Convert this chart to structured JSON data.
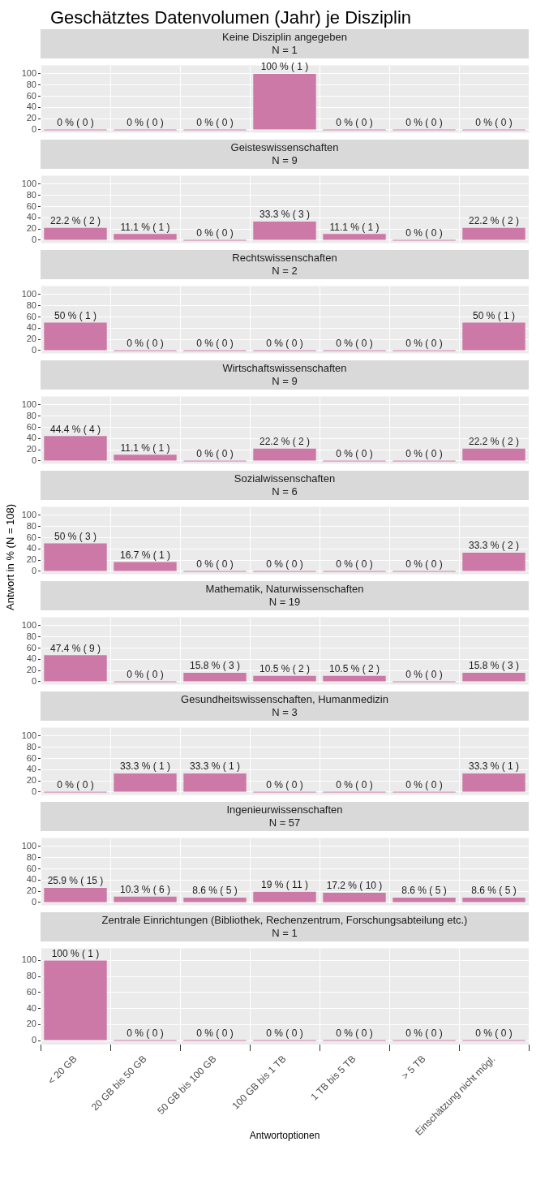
{
  "chart_data": [
    {
      "type": "bar",
      "title": "Keine Disziplin angegeben",
      "subtitle": "N = 1",
      "annotations": [
        "Geschätztes Datenvolumen (Jahr) je Disziplin"
      ],
      "categories": [
        null,
        null,
        null,
        null,
        null,
        null,
        null
      ],
      "values": [
        0,
        0,
        0,
        100,
        0,
        0,
        0
      ],
      "value_labels": [
        "0 % ( 0 )",
        "0 % ( 0 )",
        "0 % ( 0 )",
        "100 % ( 1 )",
        "0 % ( 0 )",
        "0 % ( 0 )",
        "0 % ( 0 )"
      ],
      "color": "#cc79a7",
      "ylim": [
        -5,
        115
      ],
      "yticks": [
        0,
        20,
        40,
        60,
        80,
        100
      ],
      "grid": true,
      "tick_labels": "y"
    },
    {
      "type": "bar",
      "title": "Geisteswissenschaften",
      "subtitle": "N = 9",
      "categories": [
        null,
        null,
        null,
        null,
        null,
        null,
        null
      ],
      "values": [
        22.2,
        11.1,
        0,
        33.3,
        11.1,
        0,
        22.2
      ],
      "value_labels": [
        "22.2 % ( 2 )",
        "11.1 % ( 1 )",
        "0 % ( 0 )",
        "33.3 % ( 3 )",
        "11.1 % ( 1 )",
        "0 % ( 0 )",
        "22.2 % ( 2 )"
      ],
      "color": "#cc79a7",
      "ylim": [
        -5,
        115
      ],
      "yticks": [
        0,
        20,
        40,
        60,
        80,
        100
      ],
      "grid": true,
      "tick_labels": "y"
    },
    {
      "type": "bar",
      "title": "Rechtswissenschaften",
      "subtitle": "N = 2",
      "categories": [
        null,
        null,
        null,
        null,
        null,
        null,
        null
      ],
      "values": [
        50,
        0,
        0,
        0,
        0,
        0,
        50
      ],
      "value_labels": [
        "50 % ( 1 )",
        "0 % ( 0 )",
        "0 % ( 0 )",
        "0 % ( 0 )",
        "0 % ( 0 )",
        "0 % ( 0 )",
        "50 % ( 1 )"
      ],
      "color": "#cc79a7",
      "ylim": [
        -5,
        115
      ],
      "yticks": [
        0,
        20,
        40,
        60,
        80,
        100
      ],
      "grid": true,
      "tick_labels": "y"
    },
    {
      "type": "bar",
      "title": "Wirtschaftswissenschaften",
      "subtitle": "N = 9",
      "categories": [
        null,
        null,
        null,
        null,
        null,
        null,
        null
      ],
      "values": [
        44.4,
        11.1,
        0,
        22.2,
        0,
        0,
        22.2
      ],
      "value_labels": [
        "44.4 % ( 4 )",
        "11.1 % ( 1 )",
        "0 % ( 0 )",
        "22.2 % ( 2 )",
        "0 % ( 0 )",
        "0 % ( 0 )",
        "22.2 % ( 2 )"
      ],
      "color": "#cc79a7",
      "ylim": [
        -5,
        115
      ],
      "yticks": [
        0,
        20,
        40,
        60,
        80,
        100
      ],
      "grid": true,
      "tick_labels": "y"
    },
    {
      "type": "bar",
      "title": "Sozialwissenschaften",
      "subtitle": "N = 6",
      "ylabel": "Antwort in % (N = 108)",
      "categories": [
        null,
        null,
        null,
        null,
        null,
        null,
        null
      ],
      "values": [
        50,
        16.7,
        0,
        0,
        0,
        0,
        33.3
      ],
      "value_labels": [
        "50 % ( 3 )",
        "16.7 % ( 1 )",
        "0 % ( 0 )",
        "0 % ( 0 )",
        "0 % ( 0 )",
        "0 % ( 0 )",
        "33.3 % ( 2 )"
      ],
      "color": "#cc79a7",
      "ylim": [
        -5,
        115
      ],
      "yticks": [
        0,
        20,
        40,
        60,
        80,
        100
      ],
      "grid": true,
      "tick_labels": "y"
    },
    {
      "type": "bar",
      "title": "Mathematik, Naturwissenschaften",
      "subtitle": "N = 19",
      "categories": [
        null,
        null,
        null,
        null,
        null,
        null,
        null
      ],
      "values": [
        47.4,
        0,
        15.8,
        10.5,
        10.5,
        0,
        15.8
      ],
      "value_labels": [
        "47.4 % ( 9 )",
        "0 % ( 0 )",
        "15.8 % ( 3 )",
        "10.5 % ( 2 )",
        "10.5 % ( 2 )",
        "0 % ( 0 )",
        "15.8 % ( 3 )"
      ],
      "color": "#cc79a7",
      "ylim": [
        -5,
        115
      ],
      "yticks": [
        0,
        20,
        40,
        60,
        80,
        100
      ],
      "grid": true,
      "tick_labels": "y"
    },
    {
      "type": "bar",
      "title": "Gesundheitswissenschaften, Humanmedizin",
      "subtitle": "N = 3",
      "categories": [
        null,
        null,
        null,
        null,
        null,
        null,
        null
      ],
      "values": [
        0,
        33.3,
        33.3,
        0,
        0,
        0,
        33.3
      ],
      "value_labels": [
        "0 % ( 0 )",
        "33.3 % ( 1 )",
        "33.3 % ( 1 )",
        "0 % ( 0 )",
        "0 % ( 0 )",
        "0 % ( 0 )",
        "33.3 % ( 1 )"
      ],
      "color": "#cc79a7",
      "ylim": [
        -5,
        115
      ],
      "yticks": [
        0,
        20,
        40,
        60,
        80,
        100
      ],
      "grid": true,
      "tick_labels": "y"
    },
    {
      "type": "bar",
      "title": "Ingenieurwissenschaften",
      "subtitle": "N = 57",
      "categories": [
        null,
        null,
        null,
        null,
        null,
        null,
        null
      ],
      "values": [
        25.9,
        10.3,
        8.6,
        19,
        17.2,
        8.6,
        8.6
      ],
      "value_labels": [
        "25.9 % ( 15 )",
        "10.3 % ( 6 )",
        "8.6 % ( 5 )",
        "19 % ( 11 )",
        "17.2 % ( 10 )",
        "8.6 % ( 5 )",
        "8.6 % ( 5 )"
      ],
      "color": "#cc79a7",
      "ylim": [
        -5,
        115
      ],
      "yticks": [
        0,
        20,
        40,
        60,
        80,
        100
      ],
      "grid": true,
      "tick_labels": "y"
    },
    {
      "type": "bar",
      "title": "Zentrale Einrichtungen (Bibliothek, Rechenzentrum, Forschungsabteilung etc.)",
      "subtitle": "N = 1",
      "xlabel": "Antwortoptionen",
      "categories": [
        "< 20 GB",
        "20 GB bis 50 GB",
        "50 GB bis 100 GB",
        "100 GB bis 1 TB",
        "1 TB bis 5 TB",
        "> 5 TB",
        "Einschätzung nicht mögl."
      ],
      "values": [
        100,
        0,
        0,
        0,
        0,
        0,
        0
      ],
      "value_labels": [
        "100 % ( 1 )",
        "0 % ( 0 )",
        "0 % ( 0 )",
        "0 % ( 0 )",
        "0 % ( 0 )",
        "0 % ( 0 )",
        "0 % ( 0 )"
      ],
      "color": "#cc79a7",
      "ylim": [
        -5,
        115
      ],
      "yticks": [
        0,
        20,
        40,
        60,
        80,
        100
      ],
      "grid": true
    }
  ]
}
